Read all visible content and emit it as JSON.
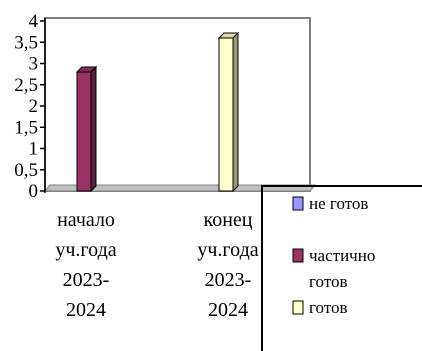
{
  "chart_data": {
    "type": "bar",
    "categories": [
      [
        "начало",
        "уч.года",
        "2023-",
        "2024"
      ],
      [
        "конец",
        "уч.года",
        "2023-",
        "2024"
      ]
    ],
    "series": [
      {
        "name": "не готов",
        "values": [
          0,
          0
        ],
        "color": "#9999ff"
      },
      {
        "name": "частично готов",
        "name_lines": [
          "частично",
          "готов"
        ],
        "values": [
          2.8,
          0
        ],
        "color": "#993366"
      },
      {
        "name": "готов",
        "values": [
          0,
          3.6
        ],
        "color": "#ffffcc"
      }
    ],
    "y_ticks": [
      "0",
      "0,5",
      "1",
      "1,5",
      "2",
      "2,5",
      "3",
      "3,5",
      "4"
    ],
    "ylim": [
      0,
      4
    ],
    "grid": false,
    "legend_position": "bottom-right"
  }
}
